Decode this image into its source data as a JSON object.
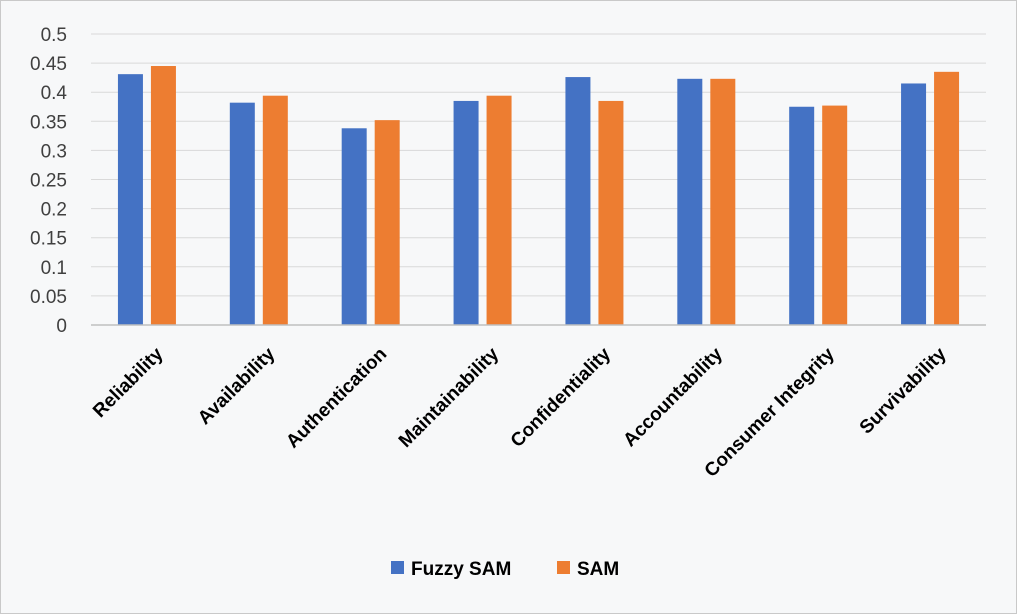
{
  "chart_data": {
    "type": "bar",
    "title": "",
    "xlabel": "",
    "ylabel": "",
    "ylim": [
      0,
      0.5
    ],
    "ytick_step": 0.05,
    "yticks": [
      "0",
      "0.05",
      "0.1",
      "0.15",
      "0.2",
      "0.25",
      "0.3",
      "0.35",
      "0.4",
      "0.45",
      "0.5"
    ],
    "grid": true,
    "legend_position": "bottom",
    "categories": [
      "Reliability",
      "Availability",
      "Authentication",
      "Maintainability",
      "Confidentiality",
      "Accountability",
      "Consumer Integrity",
      "Survivability"
    ],
    "series": [
      {
        "name": "Fuzzy SAM",
        "color": "#4472c4",
        "values": [
          0.431,
          0.382,
          0.338,
          0.385,
          0.426,
          0.423,
          0.375,
          0.415
        ]
      },
      {
        "name": "SAM",
        "color": "#ed7d31",
        "values": [
          0.445,
          0.394,
          0.352,
          0.394,
          0.385,
          0.423,
          0.377,
          0.435
        ]
      }
    ]
  }
}
